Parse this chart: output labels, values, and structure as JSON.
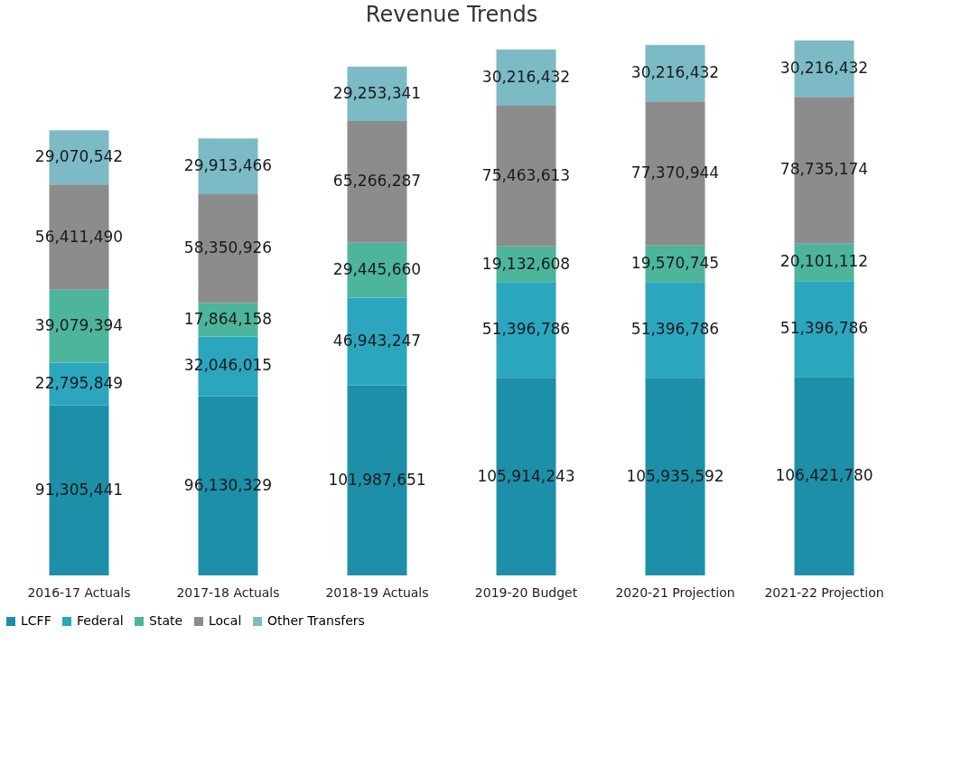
{
  "chart_data": {
    "type": "bar",
    "title": "Revenue Trends",
    "stacked": true,
    "legend": "bottom",
    "grid": false,
    "categories": [
      "2016-17 Actuals",
      "2017-18 Actuals",
      "2018-19 Actuals",
      "2019-20 Budget",
      "2020-21 Projection",
      "2021-22 Projection"
    ],
    "series": [
      {
        "name": "LCFF",
        "color": "#1d8fa8",
        "values": [
          91305441,
          96130329,
          101987651,
          105914243,
          105935592,
          106421780
        ],
        "value_labels": [
          "91,305,441",
          "96,130,329",
          "101,987,651",
          "105,914,243",
          "105,935,592",
          "106,421,780"
        ]
      },
      {
        "name": "Federal",
        "color": "#2ba6be",
        "values": [
          22795849,
          32046015,
          46943247,
          51396786,
          51396786,
          51396786
        ],
        "value_labels": [
          "22,795,849",
          "32,046,015",
          "46,943,247",
          "51,396,786",
          "51,396,786",
          "51,396,786"
        ]
      },
      {
        "name": "State",
        "color": "#4db59c",
        "values": [
          39079394,
          17864158,
          29445660,
          19132608,
          19570745,
          20101112
        ],
        "value_labels": [
          "39,079,394",
          "17,864,158",
          "29,445,660",
          "19,132,608",
          "19,570,745",
          "20,101,112"
        ]
      },
      {
        "name": "Local",
        "color": "#8c8c8c",
        "values": [
          56411490,
          58350926,
          65266287,
          75463613,
          77370944,
          78735174
        ],
        "value_labels": [
          "56,411,490",
          "58,350,926",
          "65,266,287",
          "75,463,613",
          "77,370,944",
          "78,735,174"
        ]
      },
      {
        "name": "Other Transfers",
        "color": "#7cbac6",
        "values": [
          29070542,
          29913466,
          29253341,
          30216432,
          30216432,
          30216432
        ],
        "value_labels": [
          "29,070,542",
          "29,913,466",
          "29,253,341",
          "30,216,432",
          "30,216,432",
          "30,216,432"
        ]
      }
    ]
  }
}
